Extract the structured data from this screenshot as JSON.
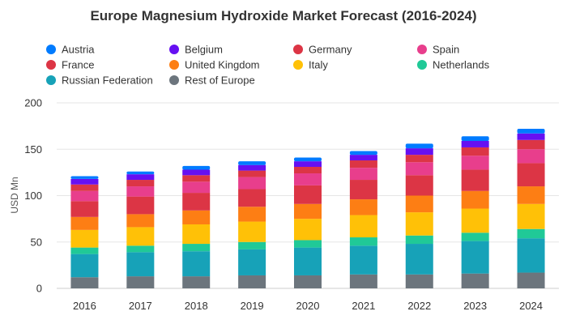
{
  "chart_data": {
    "type": "bar",
    "stacked": true,
    "title": "Europe Magnesium Hydroxide Market Forecast (2016-2024)",
    "xlabel": "",
    "ylabel": "USD Mn",
    "ylim": [
      0,
      200
    ],
    "yticks": [
      "0",
      "50",
      "100",
      "150",
      "200"
    ],
    "grid": true,
    "legend_position": "top",
    "categories": [
      "2016",
      "2017",
      "2018",
      "2019",
      "2020",
      "2021",
      "2022",
      "2023",
      "2024"
    ],
    "series": [
      {
        "name": "Rest of Europe",
        "color": "#6c757d",
        "values": [
          12,
          13,
          13,
          14,
          14,
          15,
          15,
          16,
          17
        ]
      },
      {
        "name": "Russian Federation",
        "color": "#17a2b8",
        "values": [
          25,
          26,
          27,
          28,
          30,
          31,
          33,
          35,
          37
        ]
      },
      {
        "name": "Netherlands",
        "color": "#20c997",
        "values": [
          7,
          7,
          8,
          8,
          8,
          9,
          9,
          9,
          10
        ]
      },
      {
        "name": "Italy",
        "color": "#ffc107",
        "values": [
          19,
          20,
          21,
          22,
          23,
          24,
          25,
          26,
          27
        ]
      },
      {
        "name": "United Kingdom",
        "color": "#fd7e14",
        "values": [
          14,
          14,
          15,
          16,
          16,
          17,
          18,
          19,
          19
        ]
      },
      {
        "name": "France",
        "color": "#dc3545",
        "values": [
          17,
          19,
          19,
          19,
          20,
          21,
          22,
          23,
          25
        ]
      },
      {
        "name": "Spain",
        "color": "#e83e8c",
        "values": [
          11,
          11,
          12,
          13,
          13,
          13,
          14,
          15,
          15
        ]
      },
      {
        "name": "Germany",
        "color": "#dc3545",
        "values": [
          7,
          7,
          7,
          7,
          7,
          8,
          8,
          9,
          10
        ]
      },
      {
        "name": "Belgium",
        "color": "#6610f2",
        "values": [
          6,
          6,
          6,
          6,
          6,
          6,
          7,
          7,
          7
        ]
      },
      {
        "name": "Austria",
        "color": "#007bff",
        "values": [
          3,
          3,
          4,
          4,
          4,
          4,
          5,
          5,
          5
        ]
      }
    ],
    "legend_order": [
      "Austria",
      "Belgium",
      "Germany",
      "Spain",
      "France",
      "United Kingdom",
      "Italy",
      "Netherlands",
      "Russian Federation",
      "Rest of Europe"
    ]
  }
}
